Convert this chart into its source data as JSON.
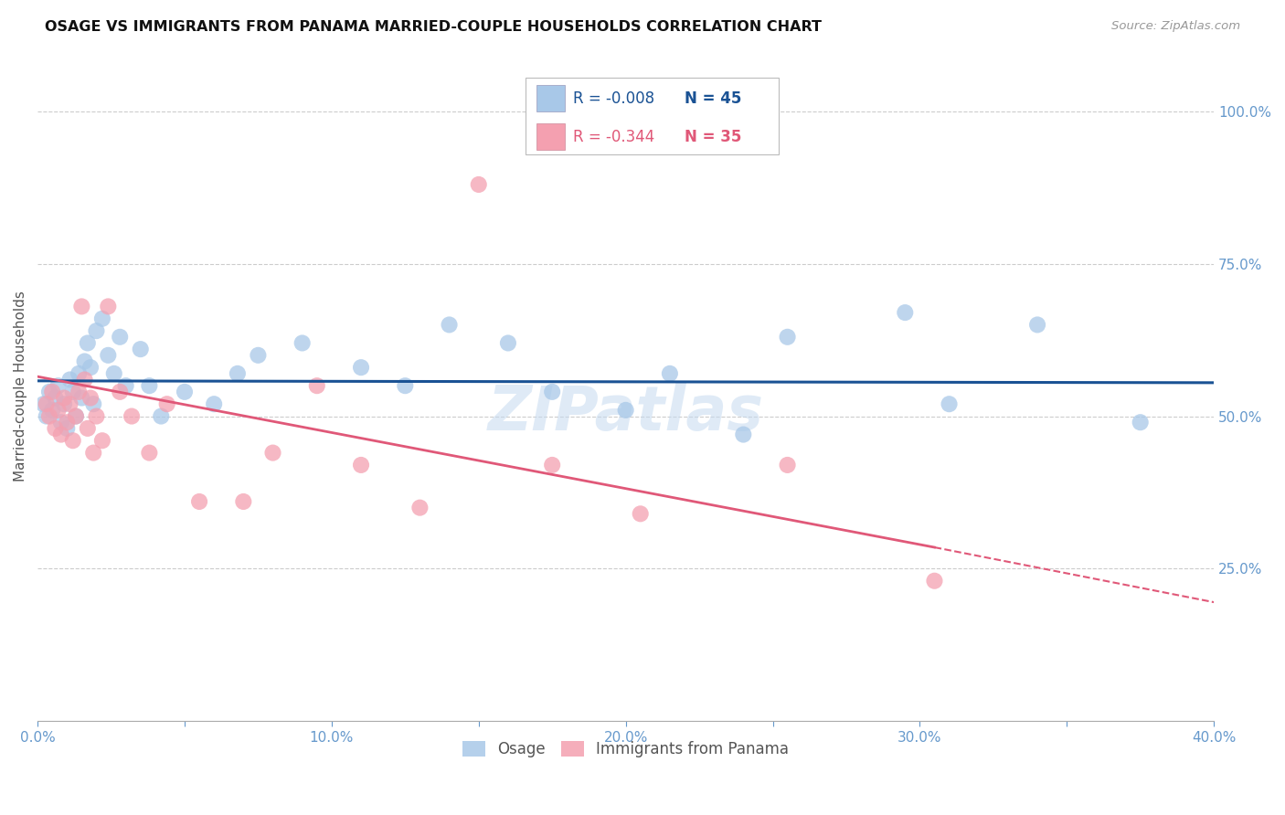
{
  "title": "OSAGE VS IMMIGRANTS FROM PANAMA MARRIED-COUPLE HOUSEHOLDS CORRELATION CHART",
  "source": "Source: ZipAtlas.com",
  "ylabel": "Married-couple Households",
  "xlim": [
    0.0,
    0.4
  ],
  "ylim": [
    0.0,
    1.1
  ],
  "yticks": [
    0.25,
    0.5,
    0.75,
    1.0
  ],
  "ytick_labels": [
    "25.0%",
    "50.0%",
    "75.0%",
    "100.0%"
  ],
  "xticks": [
    0.0,
    0.05,
    0.1,
    0.15,
    0.2,
    0.25,
    0.3,
    0.35,
    0.4
  ],
  "xtick_labels": [
    "0.0%",
    "",
    "10.0%",
    "",
    "20.0%",
    "",
    "30.0%",
    "",
    "40.0%"
  ],
  "osage_R": -0.008,
  "osage_N": 45,
  "panama_R": -0.344,
  "panama_N": 35,
  "osage_color": "#a8c8e8",
  "panama_color": "#f4a0b0",
  "osage_line_color": "#1a5294",
  "panama_line_color": "#e05878",
  "tick_color": "#6699cc",
  "grid_color": "#cccccc",
  "background_color": "#ffffff",
  "watermark": "ZIPatlas",
  "legend_R1": "R = -0.008",
  "legend_N1": "N = 45",
  "legend_R2": "R = -0.344",
  "legend_N2": "N = 35",
  "osage_x": [
    0.002,
    0.003,
    0.004,
    0.005,
    0.006,
    0.007,
    0.008,
    0.009,
    0.01,
    0.011,
    0.012,
    0.013,
    0.014,
    0.015,
    0.016,
    0.017,
    0.018,
    0.019,
    0.02,
    0.022,
    0.024,
    0.026,
    0.028,
    0.03,
    0.035,
    0.038,
    0.042,
    0.05,
    0.06,
    0.068,
    0.075,
    0.09,
    0.11,
    0.125,
    0.14,
    0.16,
    0.175,
    0.2,
    0.215,
    0.24,
    0.255,
    0.295,
    0.31,
    0.34,
    0.375
  ],
  "osage_y": [
    0.52,
    0.5,
    0.54,
    0.51,
    0.53,
    0.55,
    0.49,
    0.52,
    0.48,
    0.56,
    0.54,
    0.5,
    0.57,
    0.53,
    0.59,
    0.62,
    0.58,
    0.52,
    0.64,
    0.66,
    0.6,
    0.57,
    0.63,
    0.55,
    0.61,
    0.55,
    0.5,
    0.54,
    0.52,
    0.57,
    0.6,
    0.62,
    0.58,
    0.55,
    0.65,
    0.62,
    0.54,
    0.51,
    0.57,
    0.47,
    0.63,
    0.67,
    0.52,
    0.65,
    0.49
  ],
  "panama_x": [
    0.003,
    0.004,
    0.005,
    0.006,
    0.007,
    0.008,
    0.009,
    0.01,
    0.011,
    0.012,
    0.013,
    0.014,
    0.015,
    0.016,
    0.017,
    0.018,
    0.019,
    0.02,
    0.022,
    0.024,
    0.028,
    0.032,
    0.038,
    0.044,
    0.055,
    0.07,
    0.08,
    0.095,
    0.11,
    0.13,
    0.15,
    0.175,
    0.205,
    0.255,
    0.305
  ],
  "panama_y": [
    0.52,
    0.5,
    0.54,
    0.48,
    0.51,
    0.47,
    0.53,
    0.49,
    0.52,
    0.46,
    0.5,
    0.54,
    0.68,
    0.56,
    0.48,
    0.53,
    0.44,
    0.5,
    0.46,
    0.68,
    0.54,
    0.5,
    0.44,
    0.52,
    0.36,
    0.36,
    0.44,
    0.55,
    0.42,
    0.35,
    0.88,
    0.42,
    0.34,
    0.42,
    0.23
  ],
  "osage_trend_y0": 0.558,
  "osage_trend_y1": 0.555,
  "panama_trend_y0": 0.565,
  "panama_trend_solid_x1": 0.305,
  "panama_trend_y1_solid": 0.285,
  "panama_trend_x2": 0.4,
  "panama_trend_y2": 0.195
}
